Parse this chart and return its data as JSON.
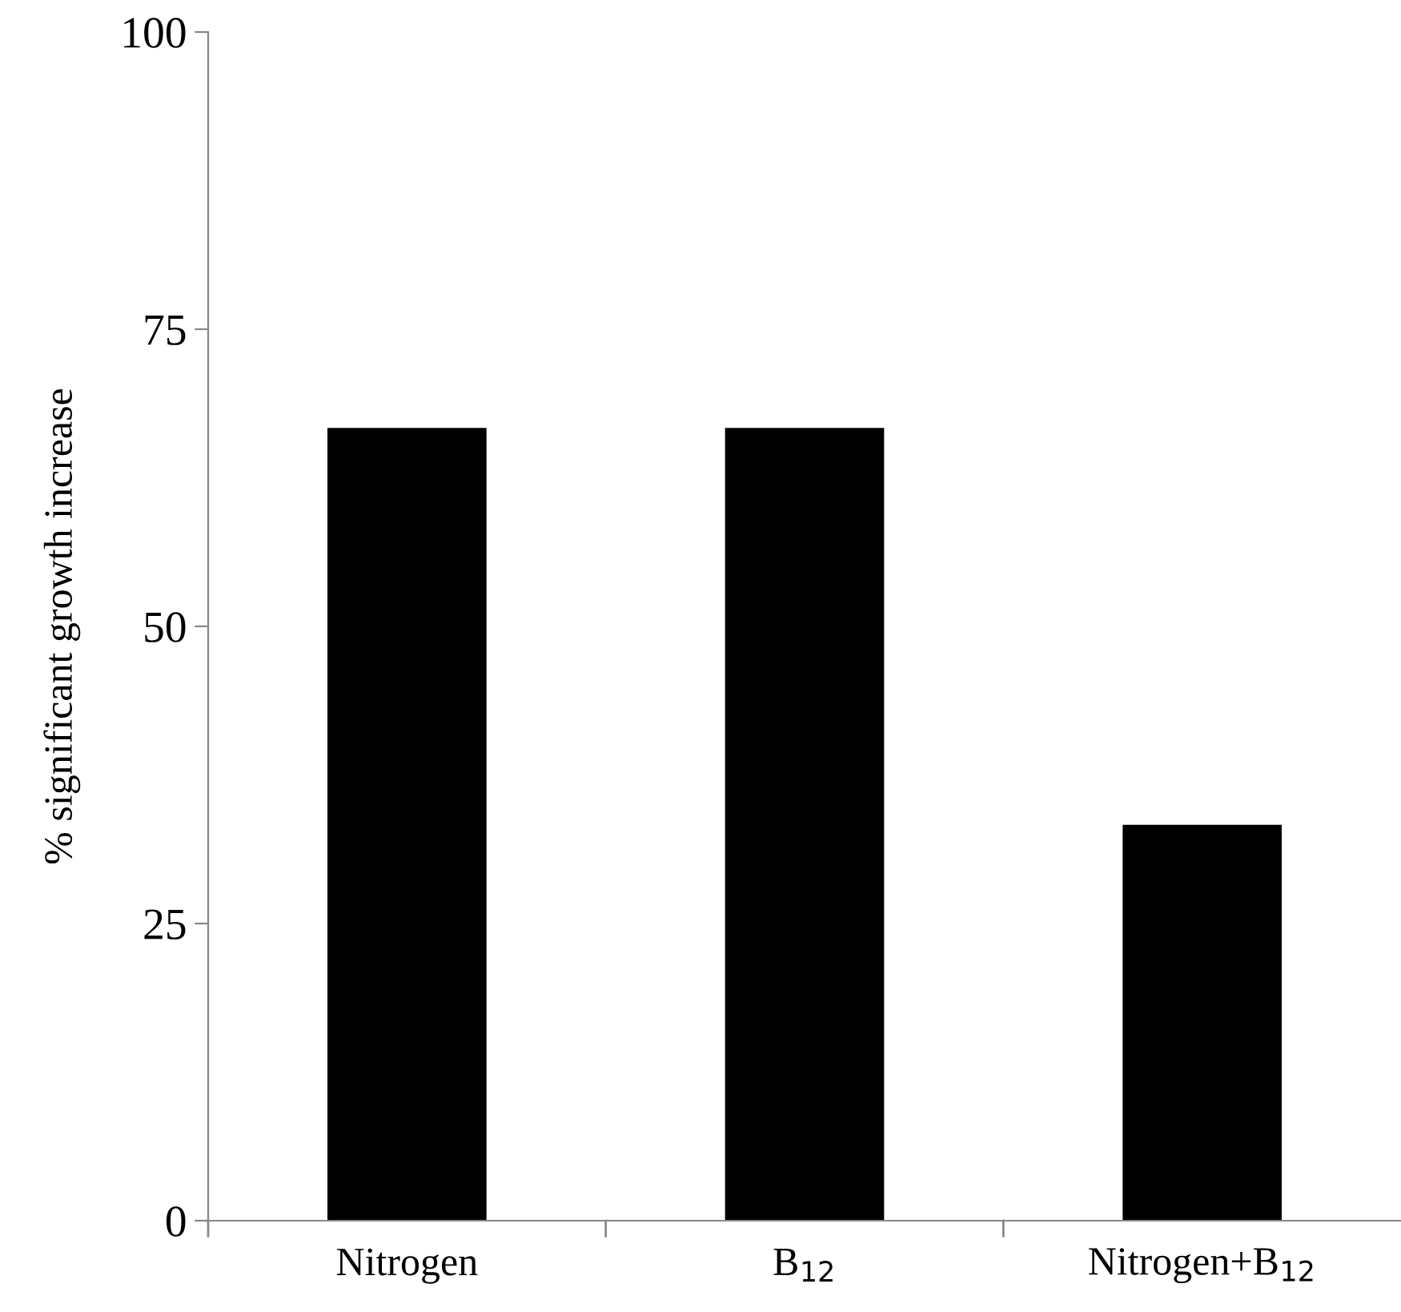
{
  "chart_data": {
    "type": "bar",
    "ylabel": "% significant growth increase",
    "categories": [
      "Nitrogen",
      "B$_{12}$",
      "Nitrogen+B$_{12}$"
    ],
    "values": [
      66.7,
      66.7,
      33.3
    ],
    "color": "#000000",
    "ylim": [
      0,
      100
    ],
    "yticks": [
      0,
      25,
      50,
      75,
      100
    ],
    "grid": false,
    "legend": false
  }
}
